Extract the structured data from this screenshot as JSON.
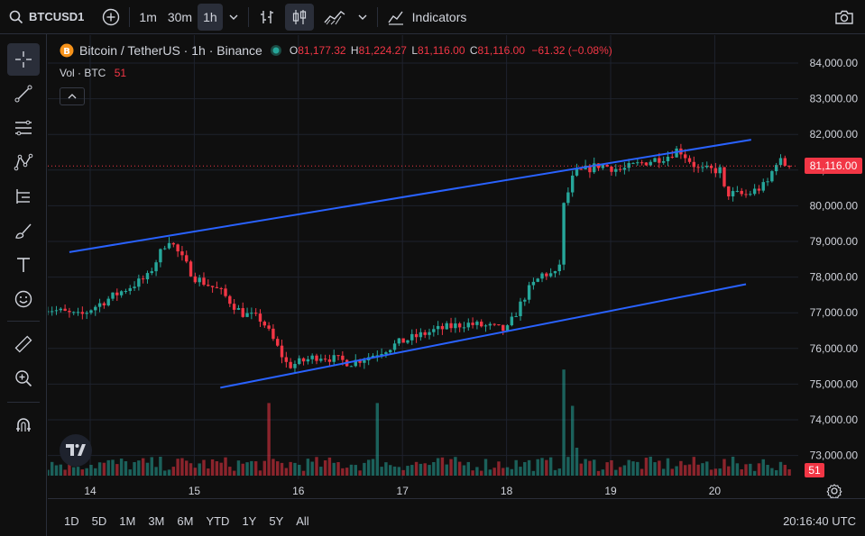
{
  "topbar": {
    "symbol": "BTCUSD1",
    "intervals": [
      "1m",
      "30m",
      "1h"
    ],
    "active_interval": "1h",
    "indicators_label": "Indicators"
  },
  "legend": {
    "title": "Bitcoin / TetherUS · 1h · Binance",
    "o_key": "O",
    "o_val": "81,177.32",
    "h_key": "H",
    "h_val": "81,224.27",
    "l_key": "L",
    "l_val": "81,116.00",
    "c_key": "C",
    "c_val": "81,116.00",
    "change": "−61.32 (−0.08%)",
    "vol_label": "Vol · BTC",
    "vol_value": "51"
  },
  "price_axis": {
    "labels": [
      "84,000.00",
      "83,000.00",
      "82,000.00",
      "81,000.00",
      "80,000.00",
      "79,000.00",
      "78,000.00",
      "77,000.00",
      "76,000.00",
      "75,000.00",
      "74,000.00",
      "73,000.00"
    ],
    "current_price": "81,116.00",
    "current_volume": "51"
  },
  "time_axis": {
    "labels": [
      "14",
      "15",
      "16",
      "17",
      "18",
      "19",
      "20"
    ]
  },
  "bottombar": {
    "ranges": [
      "1D",
      "5D",
      "1M",
      "3M",
      "6M",
      "YTD",
      "1Y",
      "5Y",
      "All"
    ],
    "clock": "20:16:40 UTC"
  },
  "colors": {
    "up": "#26a69a",
    "down": "#f23645",
    "trendline": "#2962ff",
    "background": "#0f0f0f",
    "grid": "#1e222d"
  },
  "chart_data": {
    "type": "candlestick",
    "ylim": [
      72500,
      84500
    ],
    "trendlines": [
      {
        "from": {
          "day": 13.8,
          "price": 78700
        },
        "to": {
          "day": 20.35,
          "price": 81850
        }
      },
      {
        "from": {
          "day": 15.25,
          "price": 74900
        },
        "to": {
          "day": 20.3,
          "price": 77800
        }
      }
    ],
    "close_anchors": [
      {
        "day": 13.55,
        "price": 77150
      },
      {
        "day": 13.9,
        "price": 76900
      },
      {
        "day": 14.0,
        "price": 77100
      },
      {
        "day": 14.3,
        "price": 77600
      },
      {
        "day": 14.55,
        "price": 78000
      },
      {
        "day": 14.75,
        "price": 79100
      },
      {
        "day": 15.0,
        "price": 78000
      },
      {
        "day": 15.25,
        "price": 77600
      },
      {
        "day": 15.45,
        "price": 77000
      },
      {
        "day": 15.65,
        "price": 76800
      },
      {
        "day": 15.9,
        "price": 75500
      },
      {
        "day": 16.2,
        "price": 75800
      },
      {
        "day": 16.5,
        "price": 75600
      },
      {
        "day": 16.7,
        "price": 75800
      },
      {
        "day": 17.0,
        "price": 76200
      },
      {
        "day": 17.3,
        "price": 76500
      },
      {
        "day": 17.6,
        "price": 76700
      },
      {
        "day": 17.85,
        "price": 76600
      },
      {
        "day": 18.0,
        "price": 76500
      },
      {
        "day": 18.2,
        "price": 77600
      },
      {
        "day": 18.35,
        "price": 78100
      },
      {
        "day": 18.5,
        "price": 78050
      },
      {
        "day": 18.55,
        "price": 80000
      },
      {
        "day": 18.65,
        "price": 80900
      },
      {
        "day": 18.9,
        "price": 81150
      },
      {
        "day": 19.1,
        "price": 81000
      },
      {
        "day": 19.3,
        "price": 81200
      },
      {
        "day": 19.55,
        "price": 81400
      },
      {
        "day": 19.65,
        "price": 81600
      },
      {
        "day": 19.85,
        "price": 81000
      },
      {
        "day": 20.05,
        "price": 81000
      },
      {
        "day": 20.1,
        "price": 80350
      },
      {
        "day": 20.3,
        "price": 80300
      },
      {
        "day": 20.5,
        "price": 80600
      },
      {
        "day": 20.6,
        "price": 81300
      },
      {
        "day": 20.7,
        "price": 81116
      }
    ],
    "volume_spikes": [
      {
        "day": 15.73,
        "volume": 1300
      },
      {
        "day": 16.75,
        "volume": 1300
      },
      {
        "day": 18.56,
        "volume": 1900
      },
      {
        "day": 18.62,
        "volume": 1250
      },
      {
        "day": 18.68,
        "volume": 500
      }
    ]
  }
}
